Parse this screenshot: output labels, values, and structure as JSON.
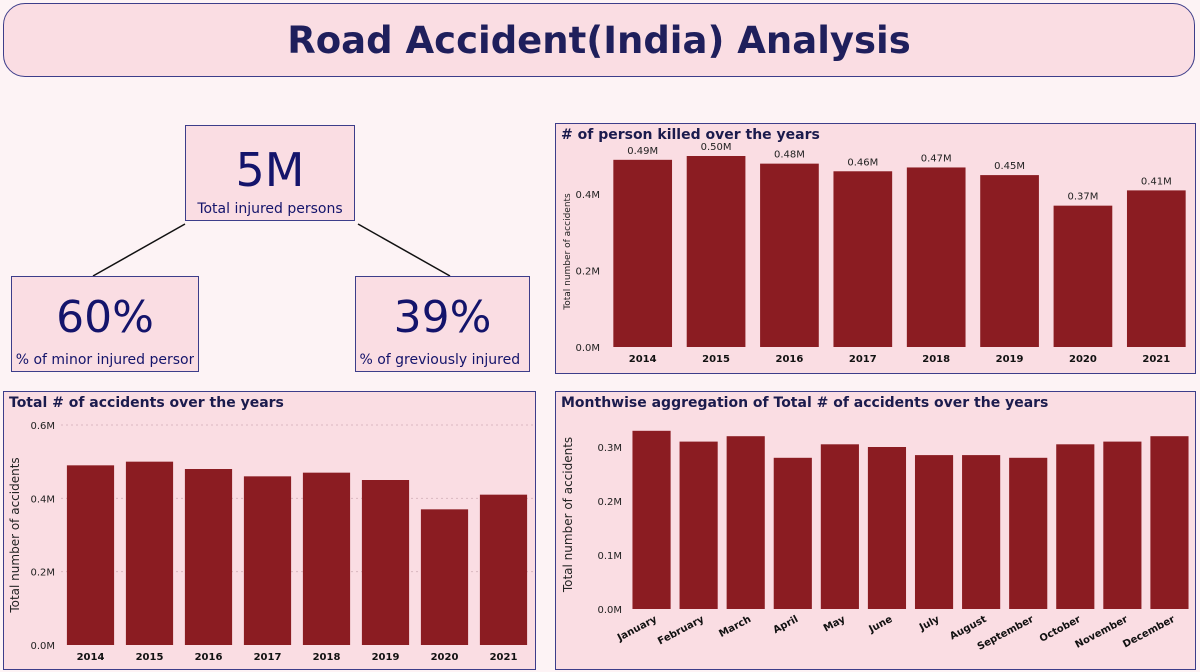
{
  "page_title": "Road Accident(India) Analysis",
  "kpis": {
    "total_injured": {
      "value": "5M",
      "label": "Total injured persons"
    },
    "minor_pct": {
      "value": "60%",
      "label": "% of minor injured person"
    },
    "grievous_pct": {
      "value": "39%",
      "label": "% of greviously injured ..."
    }
  },
  "colors": {
    "bar": "#8b1c22",
    "panel_bg": "#fadde3",
    "border": "#3d3d8a",
    "title_text": "#1f1f5c"
  },
  "chart_data": [
    {
      "type": "bar",
      "title": "# of person killed over the years",
      "xlabel": "",
      "ylabel": "Total number of accidents",
      "categories": [
        "2014",
        "2015",
        "2016",
        "2017",
        "2018",
        "2019",
        "2020",
        "2021"
      ],
      "values": [
        0.49,
        0.5,
        0.48,
        0.46,
        0.47,
        0.45,
        0.37,
        0.41
      ],
      "unit": "M",
      "data_labels": [
        "0.49M",
        "0.50M",
        "0.48M",
        "0.46M",
        "0.47M",
        "0.45M",
        "0.37M",
        "0.41M"
      ],
      "yticks": [
        "0.0M",
        "0.2M",
        "0.4M"
      ],
      "ytick_values": [
        0,
        0.2,
        0.4
      ],
      "ylim": [
        0,
        0.5
      ],
      "grid": false
    },
    {
      "type": "bar",
      "title": "Total # of accidents over the years",
      "xlabel": "",
      "ylabel": "Total number of accidents",
      "categories": [
        "2014",
        "2015",
        "2016",
        "2017",
        "2018",
        "2019",
        "2020",
        "2021"
      ],
      "values": [
        0.49,
        0.5,
        0.48,
        0.46,
        0.47,
        0.45,
        0.37,
        0.41
      ],
      "unit": "M",
      "yticks": [
        "0.0M",
        "0.2M",
        "0.4M",
        "0.6M"
      ],
      "ytick_values": [
        0,
        0.2,
        0.4,
        0.6
      ],
      "ylim": [
        0,
        0.6
      ],
      "grid": true
    },
    {
      "type": "bar",
      "title": "Monthwise aggregation of Total # of accidents over the years",
      "xlabel": "",
      "ylabel": "Total number of accidents",
      "categories": [
        "January",
        "February",
        "March",
        "April",
        "May",
        "June",
        "July",
        "August",
        "September",
        "October",
        "November",
        "December"
      ],
      "values": [
        0.33,
        0.31,
        0.32,
        0.28,
        0.305,
        0.3,
        0.285,
        0.285,
        0.28,
        0.305,
        0.31,
        0.32
      ],
      "unit": "M",
      "yticks": [
        "0.0M",
        "0.1M",
        "0.2M",
        "0.3M"
      ],
      "ytick_values": [
        0,
        0.1,
        0.2,
        0.3
      ],
      "ylim": [
        0,
        0.35
      ],
      "grid": false
    }
  ]
}
